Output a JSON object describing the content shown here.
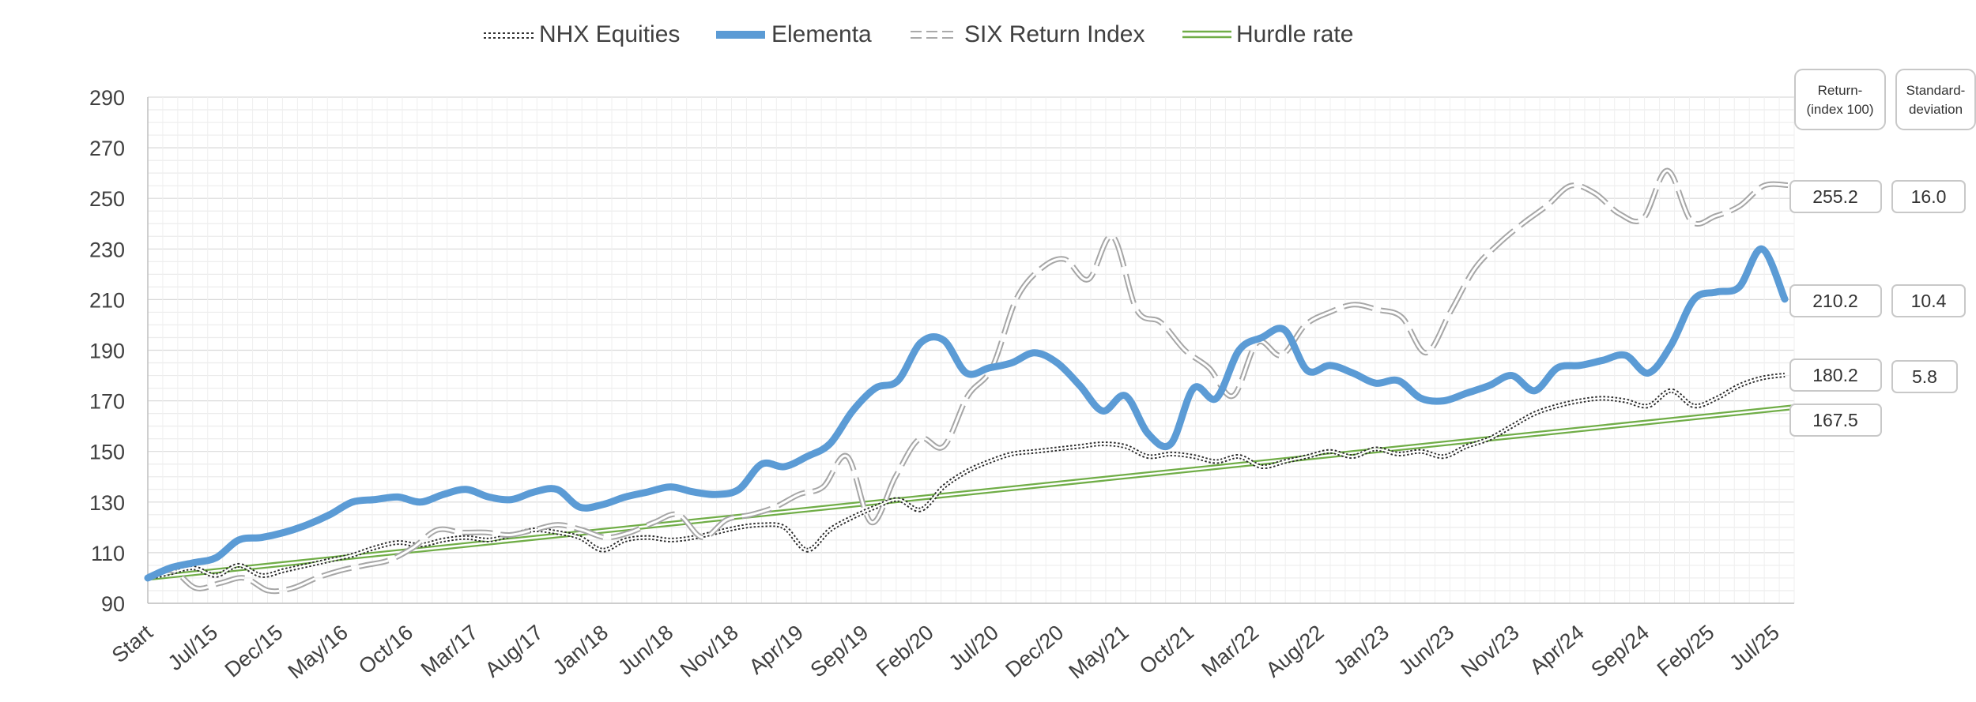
{
  "chart_data": {
    "type": "line",
    "title": "",
    "xlabel": "",
    "ylabel": "",
    "ylim": [
      90,
      290
    ],
    "yticks": [
      90,
      110,
      130,
      150,
      170,
      190,
      210,
      230,
      250,
      270,
      290
    ],
    "grid": true,
    "legend_position": "top-center",
    "x_tick_labels": [
      "Start",
      "Jul/15",
      "Dec/15",
      "May/16",
      "Oct/16",
      "Mar/17",
      "Aug/17",
      "Jan/18",
      "Jun/18",
      "Nov/18",
      "Apr/19",
      "Sep/19",
      "Feb/20",
      "Jul/20",
      "Dec/20",
      "May/21",
      "Oct/21",
      "Mar/22",
      "Aug/22",
      "Jan/23",
      "Jun/23",
      "Nov/23",
      "Apr/24",
      "Sep/24",
      "Feb/25",
      "Jul/25"
    ],
    "series": [
      {
        "name": "NHX Equities",
        "color": "#333333",
        "style": "dotted-double",
        "values": [
          100,
          102,
          104,
          101,
          105,
          101,
          103,
          105,
          107,
          109,
          112,
          114,
          113,
          115,
          116,
          115,
          117,
          119,
          118,
          116,
          111,
          115,
          116,
          115,
          116,
          118,
          120,
          121,
          120,
          111,
          119,
          124,
          128,
          131,
          127,
          136,
          142,
          146,
          149,
          150,
          151,
          152,
          153,
          152,
          148,
          149,
          148,
          146,
          148,
          144,
          146,
          148,
          150,
          148,
          151,
          149,
          150,
          148,
          152,
          155,
          160,
          165,
          168,
          170,
          171,
          170,
          168,
          174,
          168,
          171,
          176,
          179,
          180.2
        ]
      },
      {
        "name": "Elementa",
        "color": "#5b9bd5",
        "style": "thick",
        "values": [
          100,
          104,
          106,
          108,
          115,
          116,
          118,
          121,
          125,
          130,
          131,
          132,
          130,
          133,
          135,
          132,
          131,
          134,
          135,
          128,
          129,
          132,
          134,
          136,
          134,
          133,
          135,
          145,
          144,
          148,
          153,
          166,
          175,
          178,
          193,
          194,
          181,
          183,
          185,
          189,
          185,
          176,
          166,
          172,
          157,
          153,
          175,
          171,
          190,
          195,
          198,
          182,
          184,
          181,
          177,
          178,
          171,
          170,
          173,
          176,
          180,
          174,
          183,
          184,
          186,
          188,
          181,
          192,
          210,
          213,
          215,
          230,
          210.2
        ]
      },
      {
        "name": "SIX Return Index",
        "color": "#b5b5b5",
        "style": "dashed-double",
        "values": [
          100,
          103,
          96,
          98,
          100,
          95,
          96,
          100,
          103,
          105,
          107,
          112,
          119,
          118,
          118,
          117,
          119,
          121,
          119,
          116,
          118,
          122,
          125,
          116,
          123,
          125,
          128,
          133,
          136,
          148,
          122,
          140,
          155,
          152,
          172,
          183,
          210,
          222,
          226,
          218,
          235,
          206,
          201,
          190,
          183,
          172,
          193,
          188,
          200,
          205,
          208,
          206,
          203,
          189,
          205,
          222,
          232,
          240,
          247,
          255,
          252,
          244,
          242,
          261,
          241,
          243,
          247,
          255,
          255.2
        ]
      },
      {
        "name": "Hurdle rate",
        "color": "#70ad47",
        "style": "double",
        "values": [
          100,
          167.5
        ]
      }
    ]
  },
  "legend": [
    {
      "label": "NHX Equities"
    },
    {
      "label": "Elementa"
    },
    {
      "label": "SIX Return Index"
    },
    {
      "label": "Hurdle rate"
    }
  ],
  "side_table": {
    "return_header": "Return-",
    "return_header_sub": "(index 100)",
    "std_header": "Standard-",
    "std_header_sub": "deviation",
    "rows": [
      {
        "series": "SIX Return Index",
        "return": "255.2",
        "std": "16.0"
      },
      {
        "series": "Elementa",
        "return": "210.2",
        "std": "10.4"
      },
      {
        "series": "NHX Equities",
        "return": "180.2",
        "std": "5.8"
      },
      {
        "series": "Hurdle rate",
        "return": "167.5",
        "std": ""
      }
    ]
  }
}
